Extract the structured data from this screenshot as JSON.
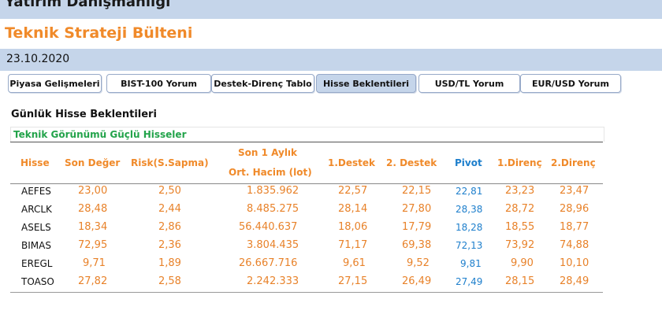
{
  "header": {
    "title": "Yatırım Danışmanlığı"
  },
  "subtitle": "Teknik Strateji Bülteni",
  "date": "23.10.2020",
  "tabs": [
    {
      "label": "Piyasa Gelişmeleri"
    },
    {
      "label": "BIST-100 Yorum"
    },
    {
      "label": "Destek-Direnç Tablo"
    },
    {
      "label": "Hisse Beklentileri",
      "active": true
    },
    {
      "label": "USD/TL Yorum"
    },
    {
      "label": "EUR/USD Yorum"
    }
  ],
  "section_title": "Günlük Hisse Beklentileri",
  "strong_label": "Teknik Görünümü Güçlü Hisseler",
  "columns": {
    "hisse": "Hisse",
    "son_deger": "Son Değer",
    "risk": "Risk(S.Sapma)",
    "hacim_line1": "Son 1 Aylık",
    "hacim_line2": "Ort. Hacim (lot)",
    "destek1": "1.Destek",
    "destek2": "2. Destek",
    "pivot": "Pivot",
    "direnc1": "1.Direnç",
    "direnc2": "2.Direnç"
  },
  "rows": [
    {
      "hisse": "AEFES",
      "son_deger": "23,00",
      "risk": "2,50",
      "hacim": "1.835.962",
      "destek1": "22,57",
      "destek2": "22,15",
      "pivot": "22,81",
      "direnc1": "23,23",
      "direnc2": "23,47"
    },
    {
      "hisse": "ARCLK",
      "son_deger": "28,48",
      "risk": "2,44",
      "hacim": "8.485.275",
      "destek1": "28,14",
      "destek2": "27,80",
      "pivot": "28,38",
      "direnc1": "28,72",
      "direnc2": "28,96"
    },
    {
      "hisse": "ASELS",
      "son_deger": "18,34",
      "risk": "2,86",
      "hacim": "56.440.637",
      "destek1": "18,06",
      "destek2": "17,79",
      "pivot": "18,28",
      "direnc1": "18,55",
      "direnc2": "18,77"
    },
    {
      "hisse": "BIMAS",
      "son_deger": "72,95",
      "risk": "2,36",
      "hacim": "3.804.435",
      "destek1": "71,17",
      "destek2": "69,38",
      "pivot": "72,13",
      "direnc1": "73,92",
      "direnc2": "74,88"
    },
    {
      "hisse": "EREGL",
      "son_deger": "9,71",
      "risk": "1,89",
      "hacim": "26.667.716",
      "destek1": "9,61",
      "destek2": "9,52",
      "pivot": "9,81",
      "direnc1": "9,90",
      "direnc2": "10,10"
    },
    {
      "hisse": "TOASO",
      "son_deger": "27,82",
      "risk": "2,58",
      "hacim": "2.242.333",
      "destek1": "27,15",
      "destek2": "26,49",
      "pivot": "27,49",
      "direnc1": "28,15",
      "direnc2": "28,49"
    }
  ],
  "colors": {
    "orange": "#f08a2a",
    "pivot_blue": "#1e7fcc",
    "green": "#22a34a",
    "band": "#c5d5ea"
  }
}
